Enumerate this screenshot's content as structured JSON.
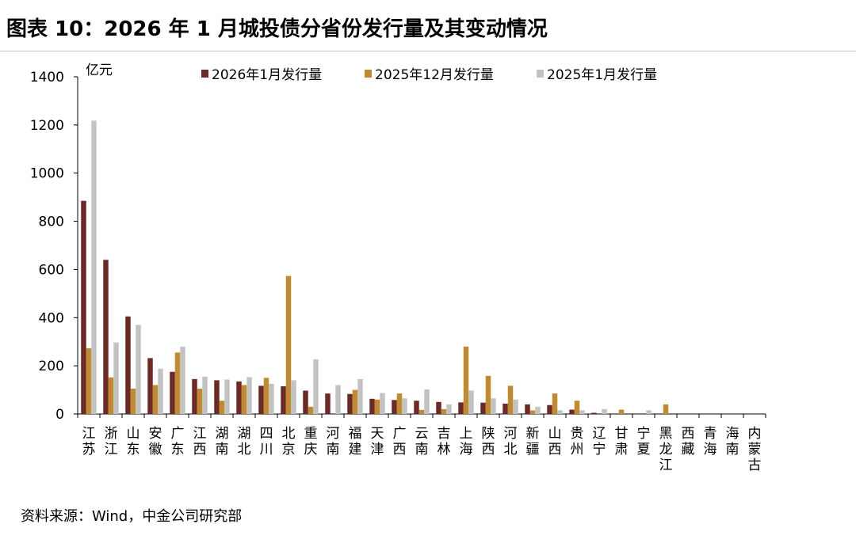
{
  "title": "图表 10：2026 年 1 月城投债分省份发行量及其变动情况",
  "source": "资料来源：Wind，中金公司研究部",
  "chart_data": {
    "type": "bar",
    "unit_label": "亿元",
    "ylim": [
      0,
      1400
    ],
    "yticks": [
      0,
      200,
      400,
      600,
      800,
      1000,
      1200,
      1400
    ],
    "legend_position": "top",
    "categories": [
      "江苏",
      "浙江",
      "山东",
      "安徽",
      "广东",
      "江西",
      "湖南",
      "湖北",
      "四川",
      "北京",
      "重庆",
      "河南",
      "福建",
      "天津",
      "广西",
      "云南",
      "吉林",
      "上海",
      "陕西",
      "河北",
      "新疆",
      "山西",
      "贵州",
      "辽宁",
      "甘肃",
      "宁夏",
      "黑龙江",
      "西藏",
      "青海",
      "海南",
      "内蒙古"
    ],
    "series": [
      {
        "name": "2026年1月发行量",
        "color": "#6b2a26",
        "values": [
          885,
          640,
          405,
          232,
          175,
          145,
          140,
          135,
          117,
          115,
          97,
          85,
          83,
          63,
          58,
          55,
          50,
          48,
          47,
          43,
          40,
          37,
          18,
          5,
          0,
          0,
          0,
          0,
          0,
          0,
          0
        ]
      },
      {
        "name": "2025年12月发行量",
        "color": "#c08a33",
        "values": [
          273,
          152,
          105,
          120,
          255,
          105,
          55,
          120,
          150,
          573,
          30,
          0,
          100,
          60,
          85,
          17,
          20,
          280,
          158,
          117,
          15,
          85,
          55,
          0,
          18,
          0,
          40,
          0,
          0,
          0,
          0
        ]
      },
      {
        "name": "2025年1月发行量",
        "color": "#c3c3c3",
        "values": [
          1218,
          297,
          370,
          188,
          280,
          155,
          143,
          153,
          125,
          140,
          227,
          120,
          145,
          87,
          65,
          102,
          40,
          97,
          65,
          60,
          30,
          15,
          15,
          20,
          0,
          15,
          0,
          0,
          0,
          0,
          0
        ]
      }
    ]
  }
}
